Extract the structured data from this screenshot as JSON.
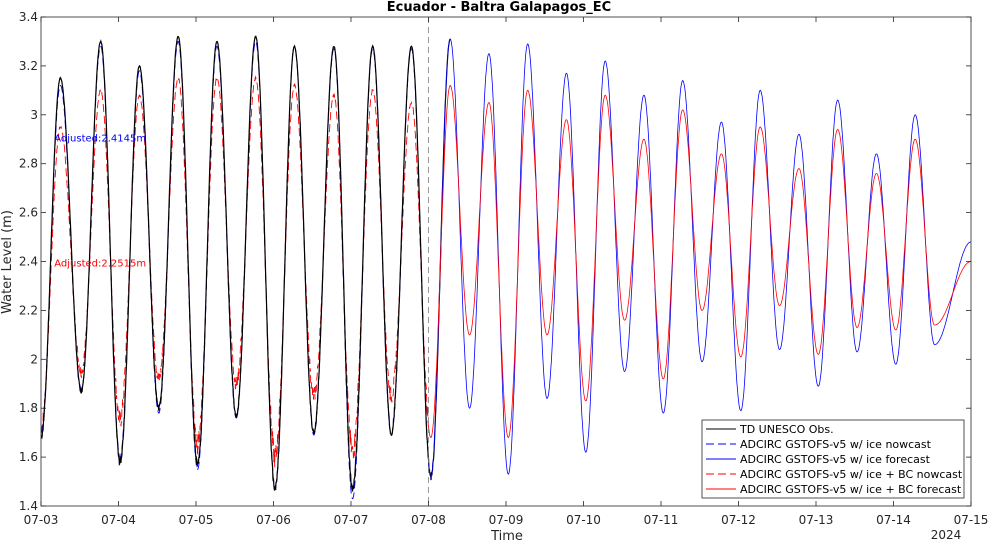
{
  "chart_data": {
    "type": "line",
    "title": "Ecuador - Baltra Galapagos_EC",
    "xlabel": "Time",
    "ylabel": "Water Level (m)",
    "year_label": "2024",
    "x_tick_labels": [
      "07-03",
      "07-04",
      "07-05",
      "07-06",
      "07-07",
      "07-08",
      "07-09",
      "07-10",
      "07-11",
      "07-12",
      "07-13",
      "07-14",
      "07-15"
    ],
    "xlim_days": [
      3,
      15
    ],
    "ylim": [
      1.4,
      3.4
    ],
    "y_ticks": [
      1.4,
      1.6,
      1.8,
      2,
      2.2,
      2.4,
      2.6,
      2.8,
      3,
      3.2,
      3.4
    ],
    "grid": false,
    "legend_position": "bottom-right",
    "nowcast_forecast_split_day": 8.0,
    "annotations": [
      {
        "text": "Adjusted:2.4145m",
        "color": "#0000ff",
        "x_day": 3.3,
        "y": 2.89
      },
      {
        "text": "Adjusted:2.2515m",
        "color": "#ff0000",
        "x_day": 3.3,
        "y": 2.38
      }
    ],
    "series": [
      {
        "name": "TD UNESCO Obs.",
        "color": "#000000",
        "dash": "solid",
        "x_range": [
          3.0,
          8.45
        ]
      },
      {
        "name": "ADCIRC GSTOFS-v5 w/ ice nowcast",
        "color": "#0000ff",
        "dash": "dashed",
        "x_range": [
          3.0,
          8.0
        ]
      },
      {
        "name": "ADCIRC GSTOFS-v5 w/ ice forecast",
        "color": "#0000ff",
        "dash": "solid",
        "x_range": [
          8.0,
          15.0
        ]
      },
      {
        "name": "ADCIRC GSTOFS-v5 w/ ice + BC nowcast",
        "color": "#ff0000",
        "dash": "dashed",
        "x_range": [
          3.0,
          8.0
        ]
      },
      {
        "name": "ADCIRC GSTOFS-v5 w/ ice + BC forecast",
        "color": "#ff0000",
        "dash": "solid",
        "x_range": [
          8.0,
          15.0
        ]
      }
    ],
    "high_tides": [
      {
        "x": 3.25,
        "obs": 3.15,
        "blue": 3.12,
        "red": 2.95
      },
      {
        "x": 3.77,
        "obs": 3.3,
        "blue": 3.28,
        "red": 3.1
      },
      {
        "x": 4.27,
        "obs": 3.2,
        "blue": 3.18,
        "red": 3.08
      },
      {
        "x": 4.77,
        "obs": 3.32,
        "blue": 3.3,
        "red": 3.15
      },
      {
        "x": 5.27,
        "obs": 3.3,
        "blue": 3.28,
        "red": 3.15
      },
      {
        "x": 5.77,
        "obs": 3.32,
        "blue": 3.3,
        "red": 3.15
      },
      {
        "x": 6.27,
        "obs": 3.28,
        "blue": 3.28,
        "red": 3.12
      },
      {
        "x": 6.78,
        "obs": 3.28,
        "blue": 3.27,
        "red": 3.08
      },
      {
        "x": 7.28,
        "obs": 3.28,
        "blue": 3.27,
        "red": 3.1
      },
      {
        "x": 7.78,
        "obs": 3.28,
        "blue": 3.27,
        "red": 3.05
      },
      {
        "x": 8.28,
        "obs": 3.31,
        "blue": 3.31,
        "red": 3.12
      },
      {
        "x": 8.78,
        "obs": null,
        "blue": 3.25,
        "red": 3.05
      },
      {
        "x": 9.28,
        "obs": null,
        "blue": 3.29,
        "red": 3.1
      },
      {
        "x": 9.78,
        "obs": null,
        "blue": 3.17,
        "red": 2.98
      },
      {
        "x": 10.28,
        "obs": null,
        "blue": 3.22,
        "red": 3.08
      },
      {
        "x": 10.78,
        "obs": null,
        "blue": 3.08,
        "red": 2.9
      },
      {
        "x": 11.28,
        "obs": null,
        "blue": 3.14,
        "red": 3.02
      },
      {
        "x": 11.78,
        "obs": null,
        "blue": 2.97,
        "red": 2.84
      },
      {
        "x": 12.28,
        "obs": null,
        "blue": 3.1,
        "red": 2.95
      },
      {
        "x": 12.78,
        "obs": null,
        "blue": 2.92,
        "red": 2.78
      },
      {
        "x": 13.28,
        "obs": null,
        "blue": 3.06,
        "red": 2.94
      },
      {
        "x": 13.78,
        "obs": null,
        "blue": 2.84,
        "red": 2.76
      },
      {
        "x": 14.28,
        "obs": null,
        "blue": 3.0,
        "red": 2.9
      }
    ],
    "low_tides": [
      {
        "x": 3.0,
        "obs": 1.68,
        "blue": 1.7,
        "red": 1.72
      },
      {
        "x": 3.52,
        "obs": 1.87,
        "blue": 1.88,
        "red": 1.95
      },
      {
        "x": 4.02,
        "obs": 1.58,
        "blue": 1.6,
        "red": 1.75
      },
      {
        "x": 4.52,
        "obs": 1.8,
        "blue": 1.78,
        "red": 1.92
      },
      {
        "x": 5.02,
        "obs": 1.57,
        "blue": 1.55,
        "red": 1.65
      },
      {
        "x": 5.52,
        "obs": 1.77,
        "blue": 1.76,
        "red": 1.9
      },
      {
        "x": 6.02,
        "obs": 1.47,
        "blue": 1.48,
        "red": 1.6
      },
      {
        "x": 6.52,
        "obs": 1.7,
        "blue": 1.69,
        "red": 1.85
      },
      {
        "x": 7.02,
        "obs": 1.47,
        "blue": 1.43,
        "red": 1.62
      },
      {
        "x": 7.52,
        "obs": 1.7,
        "blue": 1.69,
        "red": 1.85
      },
      {
        "x": 8.03,
        "obs": 1.52,
        "blue": 1.52,
        "red": 1.68
      },
      {
        "x": 8.53,
        "obs": null,
        "blue": 1.8,
        "red": 2.1
      },
      {
        "x": 9.03,
        "obs": null,
        "blue": 1.53,
        "red": 1.68
      },
      {
        "x": 9.53,
        "obs": null,
        "blue": 1.84,
        "red": 2.1
      },
      {
        "x": 10.03,
        "obs": null,
        "blue": 1.62,
        "red": 1.83
      },
      {
        "x": 10.53,
        "obs": null,
        "blue": 1.95,
        "red": 2.16
      },
      {
        "x": 11.03,
        "obs": null,
        "blue": 1.78,
        "red": 1.92
      },
      {
        "x": 11.53,
        "obs": null,
        "blue": 1.99,
        "red": 2.2
      },
      {
        "x": 12.03,
        "obs": null,
        "blue": 1.79,
        "red": 2.01
      },
      {
        "x": 12.53,
        "obs": null,
        "blue": 2.04,
        "red": 2.22
      },
      {
        "x": 13.03,
        "obs": null,
        "blue": 1.89,
        "red": 2.02
      },
      {
        "x": 13.53,
        "obs": null,
        "blue": 2.03,
        "red": 2.13
      },
      {
        "x": 14.03,
        "obs": null,
        "blue": 1.98,
        "red": 2.12
      },
      {
        "x": 14.53,
        "obs": null,
        "blue": 2.06,
        "red": 2.14
      },
      {
        "x": 15.0,
        "obs": null,
        "blue": 2.48,
        "red": 2.4
      }
    ]
  }
}
